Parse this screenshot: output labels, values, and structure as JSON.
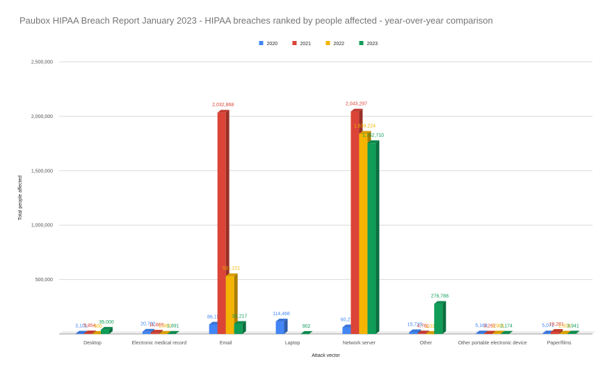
{
  "chart_data": {
    "type": "bar",
    "title": "Paubox HIPAA Breach Report January 2023 - HIPAA breaches ranked by people affected - year-over-year comparison",
    "xlabel": "Attack vector",
    "ylabel": "Total people affected",
    "ylim": [
      0,
      2500000
    ],
    "yticks": [
      "",
      "500,000",
      "1,000,000",
      "1,500,000",
      "2,000,000",
      "2,500,000"
    ],
    "grid": true,
    "legend_position": "top",
    "categories": [
      "Desktop",
      "Electronic medical record",
      "Email",
      "Laptop",
      "Network server",
      "Other",
      "Other portable electronic device",
      "Paper/films"
    ],
    "series": [
      {
        "name": "2020",
        "color": "#4285F4",
        "values": [
          3101,
          20732,
          86150,
          114466,
          60278,
          15739,
          5163,
          5071
        ],
        "labels": [
          "3,101",
          "20,732",
          "86,150",
          "114,466",
          "60,278",
          "15,739",
          "5,163",
          "5,071"
        ]
      },
      {
        "name": "2021",
        "color": "#DB4437",
        "values": [
          5854,
          11869,
          2032868,
          0,
          2043297,
          4761,
          3262,
          19281
        ],
        "labels": [
          "5,854",
          "11,869",
          "2,032,868",
          "",
          "2,043,297",
          "4,761",
          "3,262",
          "19,281"
        ]
      },
      {
        "name": "2022",
        "color": "#F4B400",
        "values": [
          500,
          1983,
          531221,
          0,
          1839224,
          1031,
          3984,
          2928
        ],
        "labels": [
          "500",
          "1,983",
          "531,221",
          "",
          "1,839,224",
          "1,031",
          "3,984",
          "2,928"
        ]
      },
      {
        "name": "2023",
        "color": "#0F9D58",
        "values": [
          39000,
          1891,
          92217,
          902,
          1752710,
          276788,
          2174,
          3941
        ],
        "labels": [
          "39,000",
          "1,891",
          "92,217",
          "902",
          "1,752,710",
          "276,788",
          "2,174",
          "3,941"
        ]
      }
    ]
  }
}
